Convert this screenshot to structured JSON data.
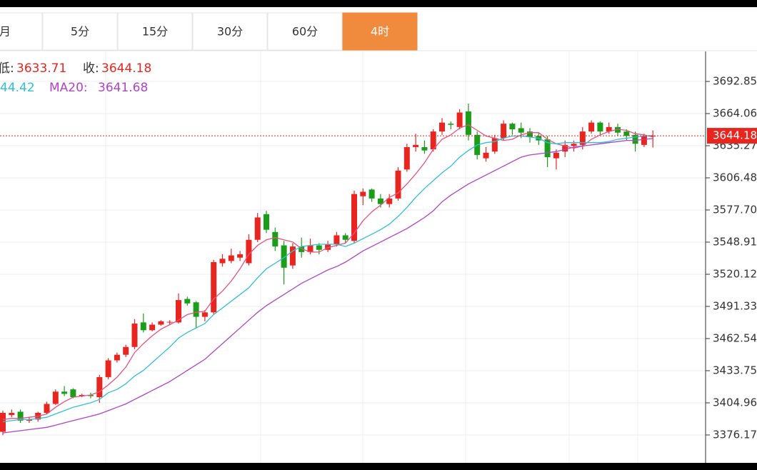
{
  "tabs": {
    "items": [
      "月",
      "5分",
      "15分",
      "30分",
      "60分",
      "4时"
    ],
    "active": 5
  },
  "chart_data": {
    "type": "candlestick",
    "info": {
      "low_label": "低:",
      "low": 3633.71,
      "close_label": "收:",
      "close": 3644.18,
      "ma10_text": "44.42",
      "ma20_label": "MA20:",
      "ma20": 3641.68
    },
    "last_price": 3644.18,
    "up_color": "#e8261f",
    "down_color": "#1a9e1a",
    "grid": true,
    "ylim": [
      3351.2,
      3719.72
    ],
    "yticks": [
      3692.85,
      3664.06,
      3635.27,
      3606.48,
      {
        "value": 3577.7,
        "label": "3577.70"
      },
      3548.91,
      3520.12,
      3491.33,
      3462.54,
      3433.75,
      3404.96,
      3376.17
    ],
    "candles": {
      "open": [
        3379,
        3394,
        3397,
        3389,
        3390,
        3396,
        3404,
        3415,
        3417,
        3411,
        3412,
        3410,
        3428,
        3443,
        3448,
        3455,
        3477,
        3470,
        3475,
        3477,
        3477,
        3498,
        3495,
        3482,
        3486,
        3530,
        3532,
        3535,
        3530,
        3551,
        3574,
        3558,
        3546,
        3528,
        3545,
        3540,
        3546,
        3542,
        3547,
        3555,
        3550,
        3590,
        3596,
        3588,
        3583,
        3588,
        3614,
        3634,
        3634,
        3632,
        3648,
        3655,
        3652,
        3666,
        3645,
        3624,
        3630,
        3642,
        3655,
        3651,
        3648,
        3644,
        3641,
        3624,
        3630,
        3635,
        3636,
        3648,
        3656,
        3648,
        3652,
        3648,
        3645,
        3636,
        3644
      ],
      "high": [
        3398,
        3399,
        3399,
        3392,
        3397,
        3406,
        3417,
        3420,
        3418,
        3413,
        3414,
        3430,
        3445,
        3450,
        3457,
        3480,
        3485,
        3477,
        3479,
        3479,
        3503,
        3500,
        3496,
        3488,
        3533,
        3538,
        3543,
        3541,
        3556,
        3575,
        3577,
        3562,
        3550,
        3548,
        3553,
        3552,
        3548,
        3550,
        3558,
        3557,
        3595,
        3597,
        3597,
        3592,
        3592,
        3616,
        3637,
        3646,
        3640,
        3650,
        3660,
        3657,
        3668,
        3673,
        3648,
        3634,
        3645,
        3658,
        3656,
        3656,
        3651,
        3647,
        3644,
        3632,
        3640,
        3640,
        3652,
        3658,
        3657,
        3656,
        3655,
        3650,
        3648,
        3646,
        3649
      ],
      "low": [
        3376,
        3392,
        3387,
        3387,
        3388,
        3395,
        3403,
        3411,
        3409,
        3410,
        3409,
        3405,
        3426,
        3441,
        3446,
        3453,
        3468,
        3469,
        3474,
        3475,
        3476,
        3492,
        3472,
        3478,
        3484,
        3527,
        3530,
        3532,
        3528,
        3549,
        3557,
        3541,
        3511,
        3525,
        3535,
        3538,
        3538,
        3540,
        3545,
        3548,
        3548,
        3582,
        3585,
        3580,
        3580,
        3586,
        3612,
        3630,
        3628,
        3630,
        3645,
        3650,
        3650,
        3640,
        3623,
        3621,
        3628,
        3640,
        3645,
        3642,
        3638,
        3636,
        3616,
        3614,
        3625,
        3630,
        3632,
        3646,
        3645,
        3646,
        3644,
        3640,
        3630,
        3634,
        3633.71
      ],
      "close": [
        3396,
        3396,
        3389,
        3390,
        3396,
        3404,
        3415,
        3413,
        3410,
        3412,
        3411,
        3428,
        3443,
        3448,
        3455,
        3476,
        3470,
        3475,
        3478,
        3477.5,
        3497,
        3494,
        3482,
        3486,
        3531,
        3534,
        3537,
        3538,
        3551,
        3571,
        3560,
        3545,
        3526,
        3545,
        3540,
        3546,
        3542,
        3547,
        3555,
        3551,
        3592,
        3594,
        3588,
        3583,
        3588,
        3613,
        3634,
        3636,
        3631,
        3648,
        3656,
        3654,
        3665,
        3645,
        3627,
        3629,
        3642,
        3655,
        3650,
        3647,
        3643,
        3640,
        3625,
        3629,
        3636,
        3637,
        3648,
        3656,
        3648,
        3652,
        3647,
        3644,
        3637,
        3644,
        3644.18
      ]
    },
    "ma_lines": [
      {
        "color": "#e8517d",
        "values": [
          3390,
          3391,
          3391,
          3392,
          3393,
          3395,
          3401,
          3406,
          3410,
          3411,
          3412,
          3415,
          3421,
          3428,
          3437,
          3450,
          3458,
          3465,
          3471,
          3475,
          3479,
          3484,
          3486,
          3487,
          3498,
          3505,
          3514,
          3525,
          3538,
          3546,
          3551,
          3553,
          3551,
          3549,
          3543,
          3540,
          3540,
          3544,
          3546,
          3548,
          3557,
          3568,
          3576,
          3582,
          3589,
          3593,
          3601,
          3610,
          3620,
          3632,
          3641,
          3645,
          3651,
          3654,
          3649,
          3644,
          3642,
          3640,
          3641,
          3645,
          3647,
          3647,
          3641,
          3637,
          3635,
          3633,
          3635,
          3641,
          3645,
          3648,
          3650,
          3649,
          3646,
          3645,
          3643
        ]
      },
      {
        "color": "#2fc0d6",
        "values": [
          3388,
          3389,
          3390,
          3390,
          3391,
          3392,
          3395,
          3398,
          3401,
          3403,
          3405,
          3408,
          3414,
          3417,
          3422,
          3429,
          3434,
          3441,
          3448,
          3455,
          3463,
          3468,
          3472,
          3476,
          3484,
          3490,
          3496,
          3502,
          3508,
          3517,
          3525,
          3530,
          3535,
          3541,
          3545,
          3546,
          3547,
          3547,
          3547,
          3545,
          3548,
          3552,
          3556,
          3560,
          3565,
          3572,
          3580,
          3589,
          3597,
          3604,
          3611,
          3617,
          3625,
          3631,
          3636,
          3638,
          3639,
          3642,
          3644,
          3644,
          3643,
          3642,
          3638,
          3637,
          3638,
          3638,
          3638,
          3638,
          3638,
          3639,
          3641,
          3642,
          3643,
          3644,
          3644.42
        ]
      },
      {
        "color": "#b044c4",
        "values": [
          3378,
          3379,
          3380,
          3381,
          3382,
          3383,
          3385,
          3387,
          3389,
          3391,
          3393,
          3395,
          3398,
          3401,
          3404,
          3408,
          3412,
          3416,
          3420,
          3424,
          3429,
          3434,
          3439,
          3444,
          3451,
          3458,
          3465,
          3472,
          3479,
          3486,
          3492,
          3497,
          3502,
          3507,
          3512,
          3516,
          3520,
          3524,
          3527,
          3531,
          3536,
          3541,
          3545,
          3549,
          3553,
          3557,
          3561,
          3566,
          3571,
          3577,
          3585,
          3591,
          3596,
          3601,
          3605,
          3609,
          3613,
          3617,
          3621,
          3625,
          3627,
          3628,
          3629,
          3630,
          3632,
          3634,
          3635,
          3636,
          3637,
          3638,
          3639,
          3640,
          3640,
          3641,
          3641.68
        ]
      }
    ]
  }
}
